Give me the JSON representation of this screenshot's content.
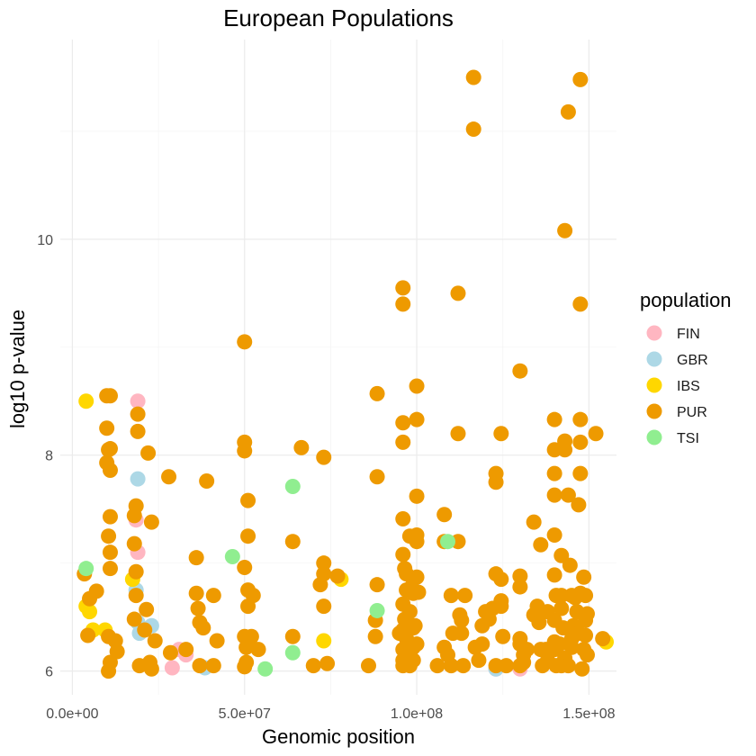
{
  "chart_data": {
    "type": "scatter",
    "title": "European Populations",
    "xlabel": "Genomic position",
    "ylabel": "log10 p-value",
    "xlim": [
      -3500000,
      158000000
    ],
    "ylim": [
      5.78,
      11.85
    ],
    "x_ticks": [
      0,
      50000000,
      100000000,
      150000000
    ],
    "x_tick_labels": [
      "0.0e+00",
      "5.0e+07",
      "1.0e+08",
      "1.5e+08"
    ],
    "x_minor": [
      25000000,
      75000000,
      125000000
    ],
    "y_ticks": [
      6,
      8,
      10
    ],
    "y_tick_labels": [
      "6",
      "8",
      "10"
    ],
    "y_minor": [
      7,
      9,
      11
    ],
    "grid": true,
    "legend": {
      "title": "population",
      "position": "right"
    },
    "series": [
      {
        "name": "FIN",
        "color": "#FFB6C1",
        "points": [
          [
            19000000,
            8.5
          ],
          [
            19000000,
            7.1
          ],
          [
            31000000,
            6.2
          ],
          [
            33000000,
            6.15
          ],
          [
            29000000,
            6.03
          ],
          [
            123000000,
            6.02
          ],
          [
            130000000,
            6.02
          ],
          [
            18500000,
            7.4
          ]
        ]
      },
      {
        "name": "GBR",
        "color": "#ADD8E6",
        "points": [
          [
            19000000,
            7.78
          ],
          [
            18500000,
            6.75
          ],
          [
            19000000,
            6.45
          ],
          [
            23000000,
            6.42
          ],
          [
            19500000,
            6.35
          ],
          [
            38500000,
            6.03
          ],
          [
            123000000,
            6.02
          ]
        ]
      },
      {
        "name": "IBS",
        "color": "#FFD700",
        "points": [
          [
            4000000,
            8.5
          ],
          [
            4000000,
            6.6
          ],
          [
            5000000,
            6.55
          ],
          [
            6000000,
            6.38
          ],
          [
            9500000,
            6.38
          ],
          [
            17500000,
            6.85
          ],
          [
            73000000,
            6.28
          ],
          [
            78000000,
            6.85
          ],
          [
            155000000,
            6.27
          ]
        ]
      },
      {
        "name": "PUR",
        "color": "#EE9A00",
        "points": [
          [
            10000000,
            8.55
          ],
          [
            11000000,
            8.55
          ],
          [
            10000000,
            8.25
          ],
          [
            10500000,
            8.05
          ],
          [
            11000000,
            8.06
          ],
          [
            10000000,
            7.93
          ],
          [
            11000000,
            7.86
          ],
          [
            11000000,
            7.43
          ],
          [
            10500000,
            7.25
          ],
          [
            11000000,
            7.1
          ],
          [
            11000000,
            6.95
          ],
          [
            10500000,
            6.32
          ],
          [
            11000000,
            6.08
          ],
          [
            10500000,
            6.0
          ],
          [
            12500000,
            6.28
          ],
          [
            13000000,
            6.18
          ],
          [
            3500000,
            6.9
          ],
          [
            4500000,
            6.33
          ],
          [
            5000000,
            6.67
          ],
          [
            7000000,
            6.74
          ],
          [
            19000000,
            8.38
          ],
          [
            19000000,
            8.22
          ],
          [
            18500000,
            7.53
          ],
          [
            18000000,
            7.44
          ],
          [
            18000000,
            7.18
          ],
          [
            18500000,
            6.92
          ],
          [
            18500000,
            6.7
          ],
          [
            18000000,
            6.48
          ],
          [
            19500000,
            6.05
          ],
          [
            21000000,
            6.38
          ],
          [
            21500000,
            6.57
          ],
          [
            22000000,
            8.02
          ],
          [
            23000000,
            7.38
          ],
          [
            23000000,
            6.02
          ],
          [
            24000000,
            6.28
          ],
          [
            28000000,
            7.8
          ],
          [
            28500000,
            6.17
          ],
          [
            33000000,
            6.2
          ],
          [
            22500000,
            6.08
          ],
          [
            36000000,
            7.05
          ],
          [
            36000000,
            6.72
          ],
          [
            36500000,
            6.58
          ],
          [
            37000000,
            6.45
          ],
          [
            38000000,
            6.4
          ],
          [
            37000000,
            6.05
          ],
          [
            39000000,
            7.76
          ],
          [
            41000000,
            6.7
          ],
          [
            41000000,
            6.05
          ],
          [
            42000000,
            6.28
          ],
          [
            50000000,
            9.05
          ],
          [
            50000000,
            8.12
          ],
          [
            50000000,
            8.04
          ],
          [
            51000000,
            7.58
          ],
          [
            51000000,
            7.25
          ],
          [
            50000000,
            6.96
          ],
          [
            51000000,
            6.75
          ],
          [
            51000000,
            6.6
          ],
          [
            52500000,
            6.7
          ],
          [
            50000000,
            6.32
          ],
          [
            52000000,
            6.32
          ],
          [
            50500000,
            6.22
          ],
          [
            51500000,
            6.25
          ],
          [
            50500000,
            6.08
          ],
          [
            50000000,
            6.04
          ],
          [
            54000000,
            6.2
          ],
          [
            64000000,
            7.2
          ],
          [
            64000000,
            6.32
          ],
          [
            66500000,
            8.07
          ],
          [
            70000000,
            6.05
          ],
          [
            73000000,
            7.98
          ],
          [
            73000000,
            7.0
          ],
          [
            73000000,
            6.9
          ],
          [
            73000000,
            6.6
          ],
          [
            72000000,
            6.8
          ],
          [
            74000000,
            6.07
          ],
          [
            77000000,
            6.88
          ],
          [
            86000000,
            6.05
          ],
          [
            88500000,
            8.57
          ],
          [
            88500000,
            7.8
          ],
          [
            88500000,
            6.8
          ],
          [
            88000000,
            6.47
          ],
          [
            88000000,
            6.32
          ],
          [
            96000000,
            9.55
          ],
          [
            96000000,
            9.4
          ],
          [
            96000000,
            8.3
          ],
          [
            96000000,
            8.12
          ],
          [
            96000000,
            7.41
          ],
          [
            96000000,
            7.08
          ],
          [
            96500000,
            6.95
          ],
          [
            97000000,
            6.9
          ],
          [
            97000000,
            6.75
          ],
          [
            96000000,
            6.62
          ],
          [
            96500000,
            6.48
          ],
          [
            96000000,
            6.38
          ],
          [
            96000000,
            6.2
          ],
          [
            96000000,
            6.1
          ],
          [
            96000000,
            6.05
          ],
          [
            98000000,
            7.25
          ],
          [
            98500000,
            6.78
          ],
          [
            98000000,
            6.55
          ],
          [
            99000000,
            6.4
          ],
          [
            99000000,
            6.22
          ],
          [
            99500000,
            6.42
          ],
          [
            100000000,
            8.64
          ],
          [
            100000000,
            8.33
          ],
          [
            100000000,
            7.62
          ],
          [
            100000000,
            7.26
          ],
          [
            100000000,
            7.2
          ],
          [
            100000000,
            6.87
          ],
          [
            99000000,
            6.72
          ],
          [
            100500000,
            6.73
          ],
          [
            100000000,
            6.25
          ],
          [
            95000000,
            6.35
          ],
          [
            97000000,
            6.3
          ],
          [
            97500000,
            6.2
          ],
          [
            98000000,
            6.15
          ],
          [
            99000000,
            6.1
          ],
          [
            98000000,
            6.05
          ],
          [
            106000000,
            6.05
          ],
          [
            108000000,
            7.45
          ],
          [
            108000000,
            7.2
          ],
          [
            108000000,
            6.22
          ],
          [
            110000000,
            6.7
          ],
          [
            110000000,
            6.05
          ],
          [
            112000000,
            9.5
          ],
          [
            112000000,
            8.2
          ],
          [
            112000000,
            7.2
          ],
          [
            112500000,
            6.52
          ],
          [
            113000000,
            6.47
          ],
          [
            113000000,
            6.35
          ],
          [
            114000000,
            6.7
          ],
          [
            113500000,
            6.05
          ],
          [
            109000000,
            6.15
          ],
          [
            110500000,
            6.35
          ],
          [
            116500000,
            11.5
          ],
          [
            116500000,
            11.02
          ],
          [
            117000000,
            6.22
          ],
          [
            118000000,
            6.1
          ],
          [
            119000000,
            6.42
          ],
          [
            119000000,
            6.25
          ],
          [
            120000000,
            6.55
          ],
          [
            121000000,
            6.48
          ],
          [
            122000000,
            6.58
          ],
          [
            123000000,
            7.83
          ],
          [
            123000000,
            7.75
          ],
          [
            123000000,
            6.9
          ],
          [
            123000000,
            6.05
          ],
          [
            124500000,
            8.2
          ],
          [
            124500000,
            6.85
          ],
          [
            124500000,
            6.65
          ],
          [
            124500000,
            6.6
          ],
          [
            125000000,
            6.32
          ],
          [
            126000000,
            6.05
          ],
          [
            130000000,
            8.78
          ],
          [
            130000000,
            6.88
          ],
          [
            130000000,
            6.78
          ],
          [
            130000000,
            6.3
          ],
          [
            130000000,
            6.25
          ],
          [
            130000000,
            6.05
          ],
          [
            131000000,
            6.08
          ],
          [
            131000000,
            6.15
          ],
          [
            132000000,
            6.2
          ],
          [
            134000000,
            7.38
          ],
          [
            134000000,
            6.52
          ],
          [
            135000000,
            6.6
          ],
          [
            135500000,
            6.45
          ],
          [
            136000000,
            7.17
          ],
          [
            136000000,
            6.2
          ],
          [
            136500000,
            6.05
          ],
          [
            138000000,
            6.55
          ],
          [
            137500000,
            6.2
          ],
          [
            138000000,
            6.1
          ],
          [
            140000000,
            8.33
          ],
          [
            140000000,
            8.05
          ],
          [
            140000000,
            7.83
          ],
          [
            140000000,
            7.63
          ],
          [
            140000000,
            7.26
          ],
          [
            140000000,
            6.89
          ],
          [
            140500000,
            6.7
          ],
          [
            140000000,
            6.47
          ],
          [
            140000000,
            6.27
          ],
          [
            140000000,
            6.2
          ],
          [
            140500000,
            6.05
          ],
          [
            142000000,
            7.07
          ],
          [
            142000000,
            6.7
          ],
          [
            142000000,
            6.58
          ],
          [
            142500000,
            6.4
          ],
          [
            141500000,
            6.25
          ],
          [
            142000000,
            6.05
          ],
          [
            143000000,
            8.13
          ],
          [
            143000000,
            8.05
          ],
          [
            143000000,
            6.12
          ],
          [
            143000000,
            10.08
          ],
          [
            144000000,
            11.18
          ],
          [
            144000000,
            7.63
          ],
          [
            144500000,
            6.98
          ],
          [
            145000000,
            6.3
          ],
          [
            145000000,
            6.22
          ],
          [
            144000000,
            6.05
          ],
          [
            145500000,
            6.42
          ],
          [
            145000000,
            6.7
          ],
          [
            146000000,
            6.68
          ],
          [
            146500000,
            6.55
          ],
          [
            147500000,
            11.48
          ],
          [
            147500000,
            9.4
          ],
          [
            147500000,
            8.33
          ],
          [
            147500000,
            8.12
          ],
          [
            147500000,
            7.83
          ],
          [
            147000000,
            7.54
          ],
          [
            147500000,
            6.72
          ],
          [
            147000000,
            6.35
          ],
          [
            148000000,
            6.02
          ],
          [
            148500000,
            6.87
          ],
          [
            149000000,
            6.7
          ],
          [
            149000000,
            6.47
          ],
          [
            149000000,
            6.33
          ],
          [
            149500000,
            6.53
          ],
          [
            148500000,
            6.2
          ],
          [
            149500000,
            6.15
          ],
          [
            152000000,
            8.2
          ],
          [
            154000000,
            6.3
          ]
        ]
      },
      {
        "name": "TSI",
        "color": "#90EE90",
        "points": [
          [
            4000000,
            6.95
          ],
          [
            46500000,
            7.06
          ],
          [
            56000000,
            6.02
          ],
          [
            64000000,
            7.71
          ],
          [
            64000000,
            6.17
          ],
          [
            88500000,
            6.56
          ],
          [
            109000000,
            7.2
          ]
        ]
      }
    ]
  }
}
